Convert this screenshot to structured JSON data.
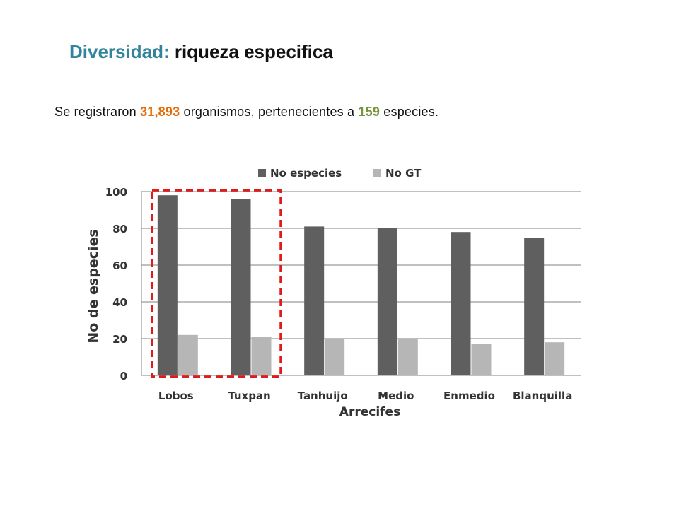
{
  "title": {
    "accent": "Diversidad:",
    "rest": " riqueza especifica"
  },
  "summary": {
    "prefix": "Se registraron ",
    "organisms": "31,893",
    "middle": " organismos, pertenecientes a ",
    "species": "159",
    "suffix": " especies."
  },
  "colors": {
    "title_accent": "#31849b",
    "organisms": "#e36c09",
    "species": "#77933c",
    "series_dark": "#5f5f5f",
    "series_light": "#b6b6b6",
    "highlight_box": "#e01b1b"
  },
  "chart_data": {
    "type": "bar",
    "xlabel": "Arrecifes",
    "ylabel": "No de especies",
    "ylim": [
      0,
      100
    ],
    "yticks": [
      0,
      20,
      40,
      60,
      80,
      100
    ],
    "grid": true,
    "legend_position": "top",
    "categories": [
      "Lobos",
      "Tuxpan",
      "Tanhuijo",
      "Medio",
      "Enmedio",
      "Blanquilla"
    ],
    "series": [
      {
        "name": "No especies",
        "color": "#5f5f5f",
        "values": [
          98,
          96,
          81,
          80,
          78,
          75
        ]
      },
      {
        "name": "No GT",
        "color": "#b6b6b6",
        "values": [
          22,
          21,
          20,
          20,
          17,
          18
        ]
      }
    ],
    "highlight": {
      "style": "red dashed rectangle",
      "categories": [
        "Lobos",
        "Tuxpan"
      ]
    }
  }
}
